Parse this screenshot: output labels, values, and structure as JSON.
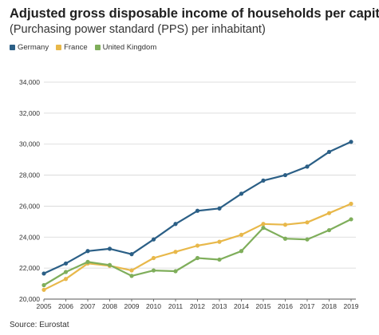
{
  "chart_data": {
    "type": "line",
    "title": "Adjusted gross disposable income of households per capita",
    "subtitle": "(Purchasing power standard (PPS) per inhabitant)",
    "source": "Source: Eurostat",
    "x": [
      "2005",
      "2006",
      "2007",
      "2008",
      "2009",
      "2010",
      "2011",
      "2012",
      "2013",
      "2014",
      "2015",
      "2016",
      "2017",
      "2018",
      "2019"
    ],
    "ylim": [
      20000,
      34000
    ],
    "yticks": [
      20000,
      22000,
      24000,
      26000,
      28000,
      30000,
      32000,
      34000
    ],
    "ytick_labels": [
      "20,000",
      "22,000",
      "24,000",
      "26,000",
      "28,000",
      "30,000",
      "32,000",
      "34,000"
    ],
    "grid": true,
    "legend_position": "top-left",
    "series": [
      {
        "name": "Germany",
        "color": "#2b5f86",
        "values": [
          21650,
          22300,
          23100,
          23250,
          22900,
          23850,
          24850,
          25700,
          25850,
          26800,
          27650,
          28000,
          28550,
          29500,
          30150
        ]
      },
      {
        "name": "France",
        "color": "#e8b84a",
        "values": [
          20600,
          21300,
          22300,
          22150,
          21850,
          22650,
          23050,
          23450,
          23700,
          24150,
          24850,
          24800,
          24950,
          25550,
          26150
        ]
      },
      {
        "name": "United Kingdom",
        "color": "#7fae5b",
        "values": [
          20900,
          21750,
          22400,
          22200,
          21500,
          21850,
          21800,
          22650,
          22550,
          23100,
          24600,
          23900,
          23850,
          24450,
          25150
        ]
      }
    ]
  }
}
